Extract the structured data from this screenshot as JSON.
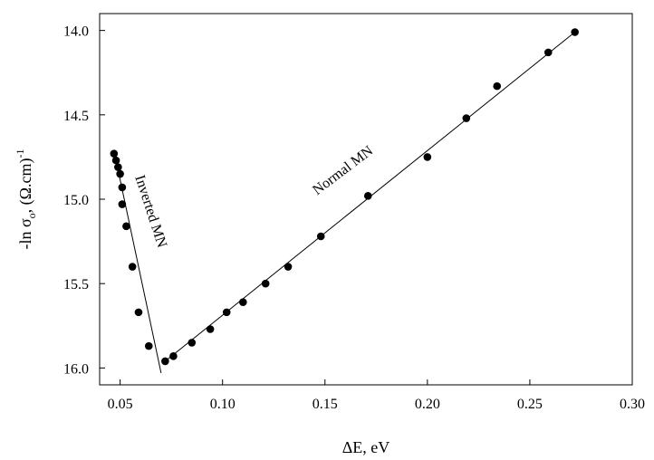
{
  "chart_data": {
    "type": "scatter",
    "title": "",
    "xlabel": "ΔE, eV",
    "ylabel_main": "-ln σ",
    "ylabel_sub": "o",
    "ylabel_rest": ", (Ω.cm)",
    "ylabel_sup": "-1",
    "xlim": [
      0.04,
      0.3
    ],
    "ylim": [
      16.1,
      13.9
    ],
    "y_inverted": true,
    "grid": false,
    "x_ticks": [
      0.05,
      0.1,
      0.15,
      0.2,
      0.25,
      0.3
    ],
    "x_tick_labels": [
      "0.05",
      "0.10",
      "0.15",
      "0.20",
      "0.25",
      "0.30"
    ],
    "y_ticks": [
      14.0,
      14.5,
      15.0,
      15.5,
      16.0
    ],
    "y_tick_labels": [
      "14.0",
      "14.5",
      "15.0",
      "15.5",
      "16.0"
    ],
    "points": [
      {
        "x": 0.047,
        "y": 14.73
      },
      {
        "x": 0.048,
        "y": 14.77
      },
      {
        "x": 0.049,
        "y": 14.81
      },
      {
        "x": 0.05,
        "y": 14.85
      },
      {
        "x": 0.051,
        "y": 14.93
      },
      {
        "x": 0.051,
        "y": 15.03
      },
      {
        "x": 0.053,
        "y": 15.16
      },
      {
        "x": 0.056,
        "y": 15.4
      },
      {
        "x": 0.059,
        "y": 15.67
      },
      {
        "x": 0.064,
        "y": 15.87
      },
      {
        "x": 0.072,
        "y": 15.96
      },
      {
        "x": 0.076,
        "y": 15.93
      },
      {
        "x": 0.085,
        "y": 15.85
      },
      {
        "x": 0.094,
        "y": 15.77
      },
      {
        "x": 0.102,
        "y": 15.67
      },
      {
        "x": 0.11,
        "y": 15.61
      },
      {
        "x": 0.121,
        "y": 15.5
      },
      {
        "x": 0.132,
        "y": 15.4
      },
      {
        "x": 0.148,
        "y": 15.22
      },
      {
        "x": 0.171,
        "y": 14.98
      },
      {
        "x": 0.2,
        "y": 14.75
      },
      {
        "x": 0.219,
        "y": 14.52
      },
      {
        "x": 0.234,
        "y": 14.33
      },
      {
        "x": 0.259,
        "y": 14.13
      },
      {
        "x": 0.272,
        "y": 14.01
      }
    ],
    "fit_lines": [
      {
        "label": "Inverted MN",
        "x": [
          0.048,
          0.07
        ],
        "y": [
          14.77,
          16.03
        ]
      },
      {
        "label": "Normal MN",
        "x": [
          0.071,
          0.273
        ],
        "y": [
          15.97,
          14.0
        ]
      }
    ],
    "annotations": [
      {
        "text": "Inverted MN",
        "x": 0.063,
        "y": 15.08,
        "rotate": 72
      },
      {
        "text": "Normal MN",
        "x": 0.16,
        "y": 14.85,
        "rotate": -37
      }
    ]
  }
}
